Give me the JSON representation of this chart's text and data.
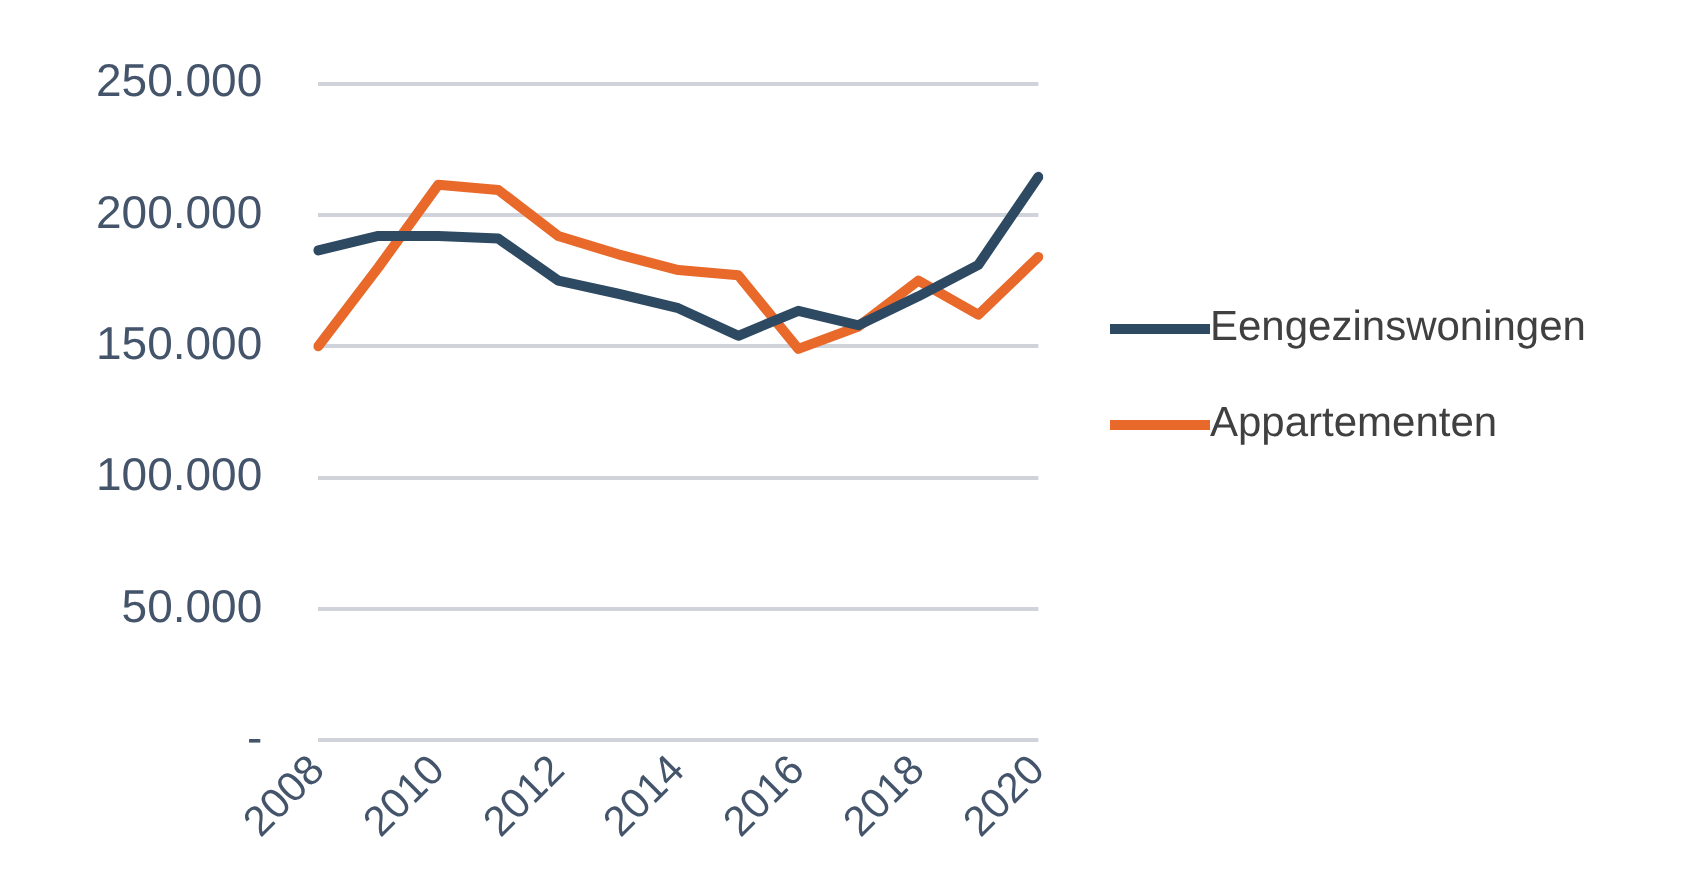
{
  "chart_data": {
    "type": "line",
    "categories": [
      "2008",
      null,
      "2010",
      null,
      "2012",
      null,
      "2014",
      null,
      "2016",
      null,
      "2018",
      null,
      "2020"
    ],
    "series": [
      {
        "name": "Eengezinswoningen",
        "color": "#2e4a62",
        "values": [
          186500,
          192000,
          192000,
          191000,
          175000,
          170000,
          164500,
          154000,
          163500,
          158000,
          169000,
          181000,
          214500
        ]
      },
      {
        "name": "Appartementen",
        "color": "#e8692a",
        "values": [
          150000,
          180000,
          211500,
          209500,
          192000,
          185000,
          179000,
          177000,
          149000,
          157500,
          175000,
          162000,
          184000
        ]
      }
    ],
    "ylim": [
      0,
      250000
    ],
    "yticks": [
      {
        "value": 0,
        "label": "-"
      },
      {
        "value": 50000,
        "label": "50.000"
      },
      {
        "value": 100000,
        "label": "100.000"
      },
      {
        "value": 150000,
        "label": "150.000"
      },
      {
        "value": 200000,
        "label": "200.000"
      },
      {
        "value": 250000,
        "label": "250.000"
      }
    ],
    "grid": "y",
    "legend": "right",
    "marker": "none",
    "line_style": "solid"
  }
}
